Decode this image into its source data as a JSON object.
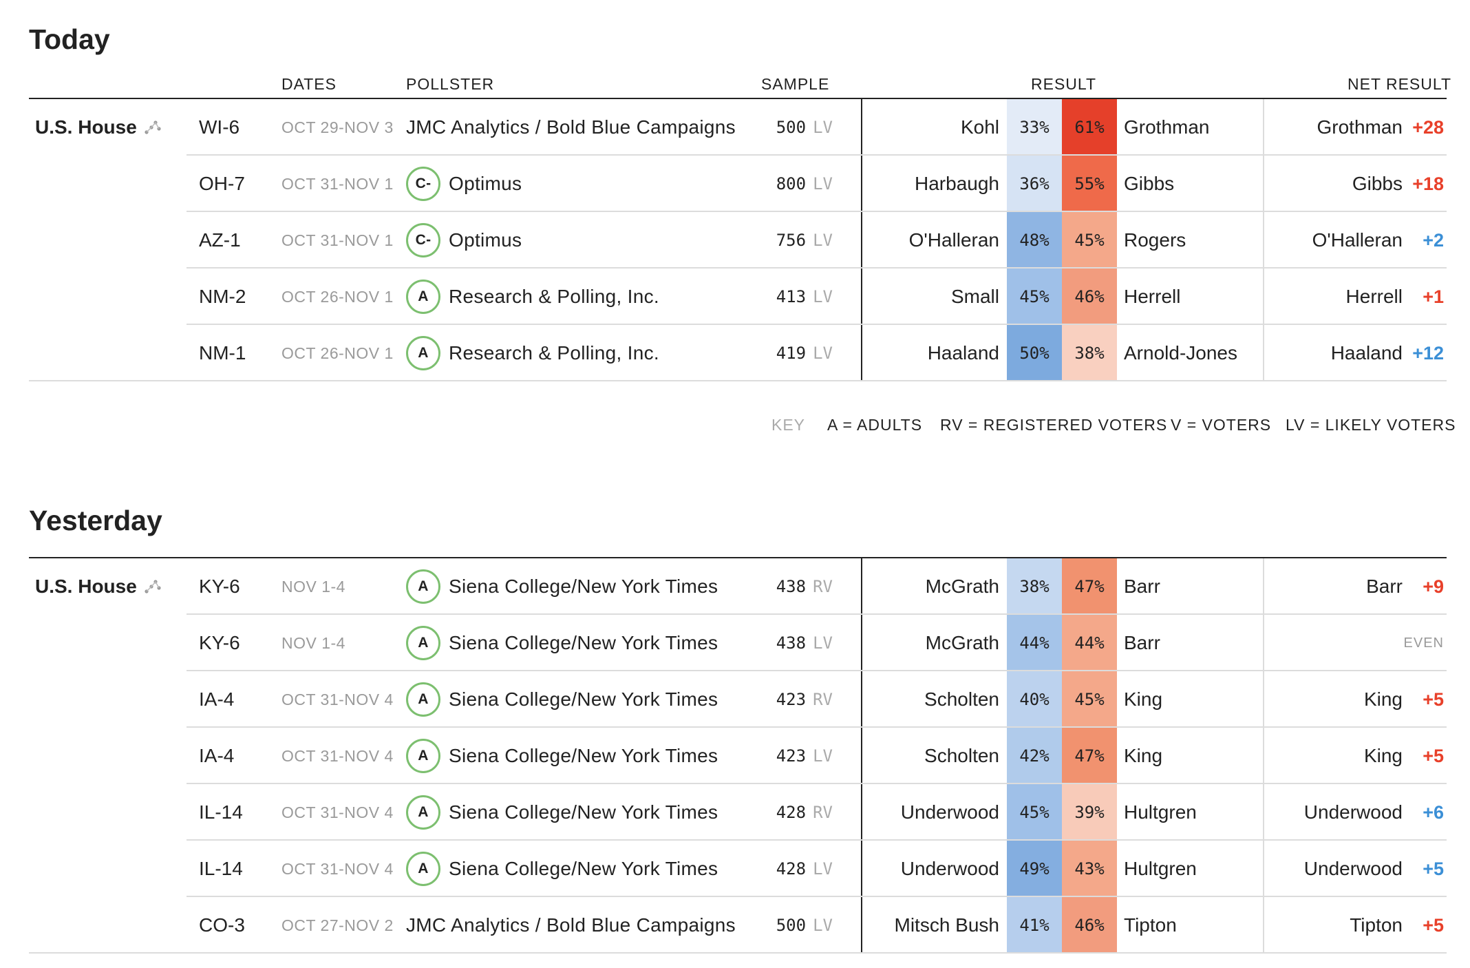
{
  "headers": {
    "dates": "DATES",
    "pollster": "POLLSTER",
    "sample": "SAMPLE",
    "result": "RESULT",
    "net": "NET RESULT"
  },
  "colors": {
    "dem_text": "#3b8fd6",
    "rep_text": "#e8402a",
    "grade_ring": "#7cbf6f"
  },
  "key": {
    "label": "KEY",
    "adults": "A = ADULTS",
    "registered": "RV = REGISTERED VOTERS",
    "voters": "V = VOTERS",
    "likely": "LV = LIKELY VOTERS"
  },
  "sections": [
    {
      "title": "Today",
      "race": "U.S. House",
      "race_icon": "trend-dots-icon",
      "rows": [
        {
          "district": "WI-6",
          "dates": "OCT 29-NOV 3",
          "grade": "",
          "pollster": "JMC Analytics / Bold Blue Campaigns",
          "sample": "500",
          "pop": "LV",
          "dem": "Kohl",
          "dem_pct": "33%",
          "dem_bg": "#e3ebf7",
          "rep_pct": "61%",
          "rep_bg": "#e5402a",
          "rep": "Grothman",
          "net_name": "Grothman",
          "net_margin": "+28",
          "net_party": "rep"
        },
        {
          "district": "OH-7",
          "dates": "OCT 31-NOV 1",
          "grade": "C-",
          "pollster": "Optimus",
          "sample": "800",
          "pop": "LV",
          "dem": "Harbaugh",
          "dem_pct": "36%",
          "dem_bg": "#d6e3f4",
          "rep_pct": "55%",
          "rep_bg": "#ef6a4a",
          "rep": "Gibbs",
          "net_name": "Gibbs",
          "net_margin": "+18",
          "net_party": "rep"
        },
        {
          "district": "AZ-1",
          "dates": "OCT 31-NOV 1",
          "grade": "C-",
          "pollster": "Optimus",
          "sample": "756",
          "pop": "LV",
          "dem": "O'Halleran",
          "dem_pct": "48%",
          "dem_bg": "#8fb5e3",
          "rep_pct": "45%",
          "rep_bg": "#f4a88a",
          "rep": "Rogers",
          "net_name": "O'Halleran",
          "net_margin": "+2",
          "net_party": "dem"
        },
        {
          "district": "NM-2",
          "dates": "OCT 26-NOV 1",
          "grade": "A",
          "pollster": "Research & Polling, Inc.",
          "sample": "413",
          "pop": "LV",
          "dem": "Small",
          "dem_pct": "45%",
          "dem_bg": "#9fc0e8",
          "rep_pct": "46%",
          "rep_bg": "#f29c7e",
          "rep": "Herrell",
          "net_name": "Herrell",
          "net_margin": "+1",
          "net_party": "rep"
        },
        {
          "district": "NM-1",
          "dates": "OCT 26-NOV 1",
          "grade": "A",
          "pollster": "Research & Polling, Inc.",
          "sample": "419",
          "pop": "LV",
          "dem": "Haaland",
          "dem_pct": "50%",
          "dem_bg": "#7daade",
          "rep_pct": "38%",
          "rep_bg": "#f9d0c0",
          "rep": "Arnold-Jones",
          "net_name": "Haaland",
          "net_margin": "+12",
          "net_party": "dem"
        }
      ]
    },
    {
      "title": "Yesterday",
      "race": "U.S. House",
      "race_icon": "trend-dots-icon",
      "rows": [
        {
          "district": "KY-6",
          "dates": "NOV 1-4",
          "grade": "A",
          "pollster": "Siena College/New York Times",
          "sample": "438",
          "pop": "RV",
          "dem": "McGrath",
          "dem_pct": "38%",
          "dem_bg": "#c5d8f0",
          "rep_pct": "47%",
          "rep_bg": "#f1926f",
          "rep": "Barr",
          "net_name": "Barr",
          "net_margin": "+9",
          "net_party": "rep"
        },
        {
          "district": "KY-6",
          "dates": "NOV 1-4",
          "grade": "A",
          "pollster": "Siena College/New York Times",
          "sample": "438",
          "pop": "LV",
          "dem": "McGrath",
          "dem_pct": "44%",
          "dem_bg": "#a5c4e9",
          "rep_pct": "44%",
          "rep_bg": "#f4a88a",
          "rep": "Barr",
          "net_name": "",
          "net_margin": "EVEN",
          "net_party": "even"
        },
        {
          "district": "IA-4",
          "dates": "OCT 31-NOV 4",
          "grade": "A",
          "pollster": "Siena College/New York Times",
          "sample": "423",
          "pop": "RV",
          "dem": "Scholten",
          "dem_pct": "40%",
          "dem_bg": "#bcd2ee",
          "rep_pct": "45%",
          "rep_bg": "#f4a88a",
          "rep": "King",
          "net_name": "King",
          "net_margin": "+5",
          "net_party": "rep"
        },
        {
          "district": "IA-4",
          "dates": "OCT 31-NOV 4",
          "grade": "A",
          "pollster": "Siena College/New York Times",
          "sample": "423",
          "pop": "LV",
          "dem": "Scholten",
          "dem_pct": "42%",
          "dem_bg": "#b0cbeb",
          "rep_pct": "47%",
          "rep_bg": "#f1926f",
          "rep": "King",
          "net_name": "King",
          "net_margin": "+5",
          "net_party": "rep"
        },
        {
          "district": "IL-14",
          "dates": "OCT 31-NOV 4",
          "grade": "A",
          "pollster": "Siena College/New York Times",
          "sample": "428",
          "pop": "RV",
          "dem": "Underwood",
          "dem_pct": "45%",
          "dem_bg": "#9fc0e8",
          "rep_pct": "39%",
          "rep_bg": "#f8cbb9",
          "rep": "Hultgren",
          "net_name": "Underwood",
          "net_margin": "+6",
          "net_party": "dem"
        },
        {
          "district": "IL-14",
          "dates": "OCT 31-NOV 4",
          "grade": "A",
          "pollster": "Siena College/New York Times",
          "sample": "428",
          "pop": "LV",
          "dem": "Underwood",
          "dem_pct": "49%",
          "dem_bg": "#84aee0",
          "rep_pct": "43%",
          "rep_bg": "#f4a88a",
          "rep": "Hultgren",
          "net_name": "Underwood",
          "net_margin": "+5",
          "net_party": "dem"
        },
        {
          "district": "CO-3",
          "dates": "OCT 27-NOV 2",
          "grade": "",
          "pollster": "JMC Analytics / Bold Blue Campaigns",
          "sample": "500",
          "pop": "LV",
          "dem": "Mitsch Bush",
          "dem_pct": "41%",
          "dem_bg": "#b6ceed",
          "rep_pct": "46%",
          "rep_bg": "#f29c7e",
          "rep": "Tipton",
          "net_name": "Tipton",
          "net_margin": "+5",
          "net_party": "rep"
        }
      ]
    }
  ]
}
